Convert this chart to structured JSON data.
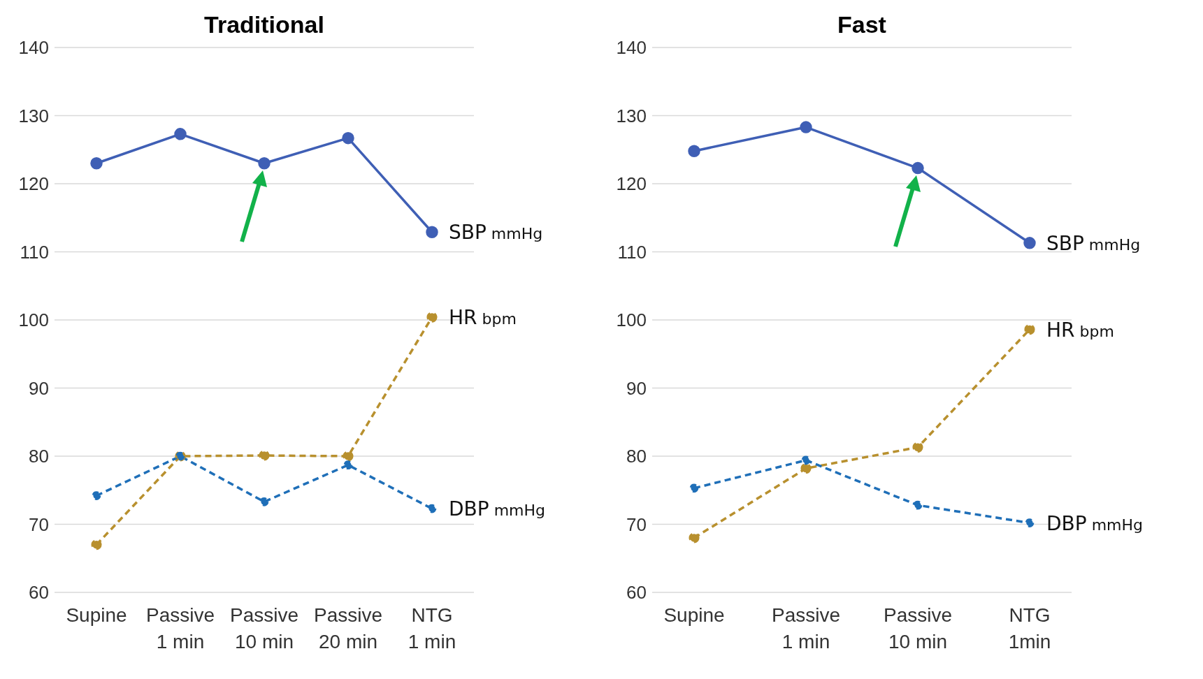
{
  "chart_data": [
    {
      "type": "line",
      "title": "Traditional",
      "categories": [
        "Supine",
        "Passive\n1 min",
        "Passive\n10 min",
        "Passive\n20 min",
        "NTG\n1 min"
      ],
      "ylim": [
        60,
        140
      ],
      "yticks": [
        60,
        70,
        80,
        90,
        100,
        110,
        120,
        130,
        140
      ],
      "grid": "y",
      "legend": false,
      "marker": "circle",
      "series": [
        {
          "name": "SBP mmHg",
          "color": "#3f5fb5",
          "values": [
            123,
            127.3,
            123,
            126.7,
            112.9
          ],
          "line_style": "solid"
        },
        {
          "name": "HR bpm",
          "color": "#b8902e",
          "values": [
            67,
            80,
            80.1,
            80,
            100.4
          ],
          "line_style": "dashed"
        },
        {
          "name": "DBP mmHg",
          "color": "#1f6fb8",
          "values": [
            74.2,
            80,
            73.3,
            78.7,
            72.3
          ],
          "line_style": "dashed"
        }
      ]
    },
    {
      "type": "line",
      "title": "Fast",
      "categories": [
        "Supine",
        "Passive\n1 min",
        "Passive\n10 min",
        "NTG\n1min"
      ],
      "ylim": [
        60,
        140
      ],
      "yticks": [
        60,
        70,
        80,
        90,
        100,
        110,
        120,
        130,
        140
      ],
      "grid": "y",
      "legend": false,
      "marker": "circle",
      "series": [
        {
          "name": "SBP mmHg",
          "color": "#3f5fb5",
          "values": [
            124.8,
            128.3,
            122.3,
            111.3
          ],
          "line_style": "solid"
        },
        {
          "name": "HR bpm",
          "color": "#b8902e",
          "values": [
            68,
            78.2,
            81.3,
            98.6
          ],
          "line_style": "dashed"
        },
        {
          "name": "DBP mmHg",
          "color": "#1f6fb8",
          "values": [
            75.3,
            79.4,
            72.8,
            70.2
          ],
          "line_style": "dashed"
        }
      ]
    }
  ]
}
